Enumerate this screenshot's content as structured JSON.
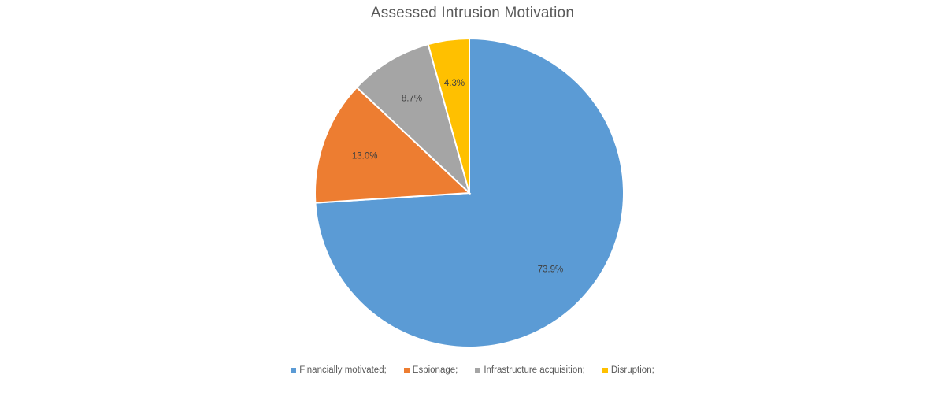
{
  "chart_data": {
    "type": "pie",
    "title": "Assessed Intrusion Motivation",
    "start_angle_deg": 0,
    "direction": "clockwise",
    "legend_position": "bottom",
    "slices": [
      {
        "name": "Financially motivated;",
        "value": 73.9,
        "label": "73.9%",
        "color": "#5B9BD5"
      },
      {
        "name": "Espionage;",
        "value": 13.0,
        "label": "13.0%",
        "color": "#ED7D31"
      },
      {
        "name": "Infrastructure acquisition;",
        "value": 8.7,
        "label": "8.7%",
        "color": "#A5A5A5"
      },
      {
        "name": "Disruption;",
        "value": 4.3,
        "label": "4.3%",
        "color": "#FFC000"
      }
    ]
  }
}
